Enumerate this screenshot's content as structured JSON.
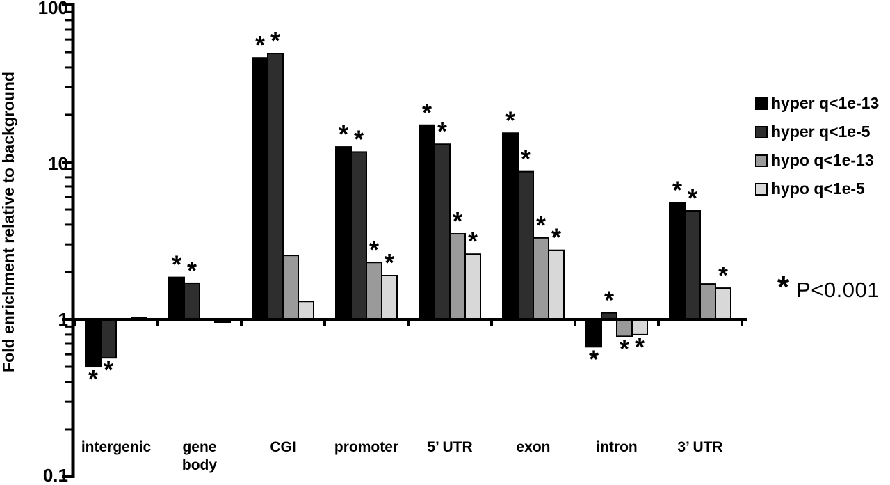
{
  "figure": {
    "ylabel": "Fold enrichment relative to background",
    "significance_symbol": "*",
    "significance_note": "P<0.001"
  },
  "chart_data": {
    "type": "bar",
    "scale": "log10",
    "title": "",
    "xlabel": "",
    "ylabel": "Fold enrichment relative to background",
    "ylim": [
      0.1,
      100
    ],
    "baseline": 1,
    "grid": false,
    "legend_position": "right",
    "ytick_labels": [
      "100",
      "10",
      "1",
      "0.1"
    ],
    "ytick_values": [
      100,
      10,
      1,
      0.1
    ],
    "categories": [
      "intergenic",
      "gene\nbody",
      "CGI",
      "promoter",
      "5’ UTR",
      "exon",
      "intron",
      "3’ UTR"
    ],
    "series": [
      {
        "name": "hyper q<1e-13",
        "color": "#000000",
        "values": [
          0.5,
          1.85,
          46.0,
          12.5,
          17.2,
          15.3,
          0.67,
          5.5
        ],
        "significant": [
          true,
          true,
          true,
          true,
          true,
          true,
          true,
          true
        ]
      },
      {
        "name": "hyper q<1e-5",
        "color": "#2e2e2e",
        "values": [
          0.57,
          1.7,
          49.0,
          11.6,
          13.0,
          8.7,
          1.1,
          4.9
        ],
        "significant": [
          true,
          true,
          true,
          true,
          true,
          true,
          true,
          true
        ]
      },
      {
        "name": "hypo q<1e-13",
        "color": "#9a9a9a",
        "values": [
          1.0,
          1.0,
          2.55,
          2.3,
          3.5,
          3.3,
          0.78,
          1.68
        ],
        "significant": [
          false,
          false,
          false,
          true,
          true,
          true,
          true,
          false
        ]
      },
      {
        "name": "hypo q<1e-5",
        "color": "#d8d8d8",
        "values": [
          1.03,
          0.96,
          1.3,
          1.9,
          2.6,
          2.75,
          0.8,
          1.58
        ],
        "significant": [
          false,
          false,
          false,
          true,
          true,
          true,
          true,
          true
        ]
      }
    ],
    "annotation": "* P<0.001"
  }
}
